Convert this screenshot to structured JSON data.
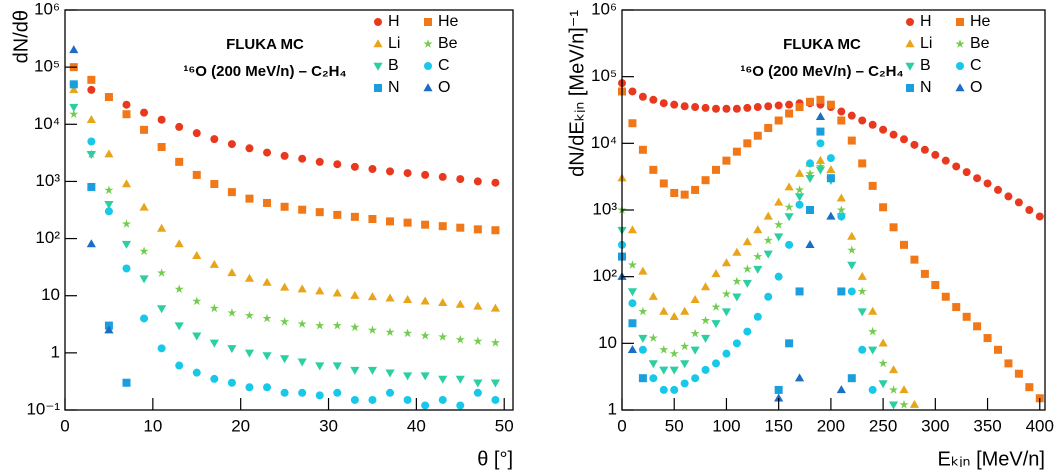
{
  "chart_data": [
    {
      "type": "scatter",
      "log_y": true,
      "legend": "upper right",
      "xlabel": "θ [°]",
      "ylabel": "dN/dθ",
      "annotations": [
        "FLUKA MC",
        "¹⁶O (200 MeV/n) – C₂H₄"
      ],
      "xlim": [
        0,
        51
      ],
      "xticks": [
        0,
        10,
        20,
        30,
        40,
        50
      ],
      "ylim": [
        0.1,
        1000000
      ],
      "yticks": [
        {
          "value": 0.1,
          "label": "10⁻¹"
        },
        1,
        10,
        {
          "value": 100,
          "label": "10²"
        },
        {
          "value": 1000,
          "label": "10³"
        },
        {
          "value": 10000,
          "label": "10⁴"
        },
        {
          "value": 100000,
          "label": "10⁵"
        },
        {
          "value": 1000000,
          "label": "10⁶"
        }
      ],
      "x": [
        1,
        3,
        5,
        7,
        9,
        11,
        13,
        15,
        17,
        19,
        21,
        23,
        25,
        27,
        29,
        31,
        33,
        35,
        37,
        39,
        41,
        43,
        45,
        47,
        49
      ],
      "series": [
        {
          "name": "H",
          "color": "#e8391e",
          "marker": "circle",
          "values": [
            50000,
            40000,
            30000,
            22000,
            16000,
            12000,
            9000,
            7000,
            5500,
            4500,
            3800,
            3200,
            2800,
            2500,
            2200,
            2000,
            1800,
            1650,
            1500,
            1400,
            1300,
            1200,
            1100,
            1000,
            950
          ]
        },
        {
          "name": "He",
          "color": "#f07818",
          "marker": "square",
          "values": [
            100000,
            60000,
            30000,
            15000,
            8000,
            4000,
            2200,
            1300,
            900,
            650,
            500,
            420,
            360,
            320,
            290,
            260,
            240,
            220,
            200,
            190,
            175,
            165,
            155,
            145,
            140
          ]
        },
        {
          "name": "Li",
          "color": "#e8a51a",
          "marker": "triangle-up",
          "values": [
            40000,
            12000,
            3000,
            900,
            350,
            150,
            80,
            50,
            35,
            25,
            20,
            17,
            14,
            13,
            12,
            11,
            10,
            9.5,
            9,
            8.5,
            8,
            7.5,
            7,
            6.5,
            6
          ]
        },
        {
          "name": "Be",
          "color": "#72cc4e",
          "marker": "star",
          "values": [
            15000,
            3000,
            700,
            180,
            60,
            25,
            13,
            8,
            6,
            5,
            4.5,
            4,
            3.5,
            3.2,
            3,
            3,
            2.8,
            2.5,
            2.3,
            2.2,
            2,
            1.9,
            1.7,
            1.6,
            1.5
          ]
        },
        {
          "name": "B",
          "color": "#2ccfa2",
          "marker": "triangle-down",
          "values": [
            20000,
            3000,
            400,
            80,
            20,
            6,
            3,
            2,
            1.5,
            1.2,
            1,
            0.9,
            0.8,
            0.7,
            0.6,
            0.6,
            0.5,
            0.5,
            0.45,
            0.4,
            0.4,
            0.35,
            0.35,
            0.3,
            0.3
          ]
        },
        {
          "name": "C",
          "color": "#18c8e8",
          "marker": "circle",
          "values": [
            50000,
            5000,
            300,
            30,
            4,
            1.2,
            0.6,
            0.45,
            0.35,
            0.3,
            0.25,
            0.25,
            0.2,
            0.2,
            0.18,
            0.2,
            0.15,
            0.15,
            0.2,
            0.15,
            0.12,
            0.15,
            0.12,
            0.2,
            0.15
          ]
        },
        {
          "name": "N",
          "color": "#1a9ede",
          "marker": "square",
          "values": [
            50000,
            800,
            3,
            0.3,
            null,
            null,
            null,
            null,
            null,
            null,
            null,
            null,
            null,
            null,
            null,
            null,
            null,
            null,
            null,
            null,
            null,
            null,
            null,
            null,
            null
          ]
        },
        {
          "name": "O",
          "color": "#1a6fc4",
          "marker": "triangle-up",
          "values": [
            200000,
            80,
            2.5,
            null,
            null,
            null,
            null,
            null,
            null,
            null,
            null,
            null,
            null,
            null,
            null,
            null,
            null,
            null,
            null,
            null,
            null,
            null,
            null,
            null,
            null
          ]
        }
      ]
    },
    {
      "type": "scatter",
      "log_y": true,
      "legend": "upper right",
      "xlabel": "Eₖᵢₙ [MeV/n]",
      "ylabel": "dN/dEₖᵢₙ [MeV/n]⁻¹",
      "annotations": [
        "FLUKA MC",
        "¹⁶O (200 MeV/n) – C₂H₄"
      ],
      "xlim": [
        0,
        405
      ],
      "xticks": [
        0,
        50,
        100,
        150,
        200,
        250,
        300,
        350,
        400
      ],
      "ylim": [
        1,
        1000000
      ],
      "yticks": [
        1,
        10,
        {
          "value": 100,
          "label": "10²"
        },
        {
          "value": 1000,
          "label": "10³"
        },
        {
          "value": 10000,
          "label": "10⁴"
        },
        {
          "value": 100000,
          "label": "10⁵"
        },
        {
          "value": 1000000,
          "label": "10⁶"
        }
      ],
      "x": [
        0,
        10,
        20,
        30,
        40,
        50,
        60,
        70,
        80,
        90,
        100,
        110,
        120,
        130,
        140,
        150,
        160,
        170,
        180,
        190,
        200,
        210,
        220,
        230,
        240,
        250,
        260,
        270,
        280,
        290,
        300,
        310,
        320,
        330,
        340,
        350,
        360,
        370,
        380,
        390,
        400
      ],
      "series": [
        {
          "name": "H",
          "color": "#e8391e",
          "marker": "circle",
          "values": [
            80000,
            60000,
            50000,
            45000,
            40000,
            38000,
            36000,
            35000,
            34000,
            33000,
            33000,
            33000,
            34000,
            35000,
            36000,
            37000,
            38000,
            40000,
            40000,
            38000,
            35000,
            30000,
            26000,
            22000,
            19000,
            16000,
            13500,
            11500,
            9500,
            8000,
            6700,
            5500,
            4500,
            3700,
            3000,
            2500,
            2000,
            1600,
            1300,
            1000,
            800
          ]
        },
        {
          "name": "He",
          "color": "#f07818",
          "marker": "square",
          "values": [
            60000,
            20000,
            8000,
            4000,
            2500,
            1800,
            1700,
            2000,
            2800,
            4000,
            5500,
            7500,
            10000,
            13000,
            17000,
            22000,
            28000,
            35000,
            42000,
            45000,
            38000,
            22000,
            11000,
            5000,
            2300,
            1100,
            550,
            300,
            180,
            110,
            75,
            50,
            35,
            25,
            18,
            12,
            8,
            5,
            3.5,
            2.2,
            1.5
          ]
        },
        {
          "name": "Li",
          "color": "#e8a51a",
          "marker": "triangle-up",
          "values": [
            3000,
            500,
            120,
            50,
            30,
            25,
            30,
            45,
            70,
            110,
            160,
            230,
            330,
            500,
            800,
            1300,
            2200,
            3500,
            5000,
            5500,
            4000,
            1500,
            400,
            100,
            30,
            10,
            4,
            2,
            1.2,
            null,
            null,
            null,
            null,
            null,
            null,
            null,
            null,
            null,
            null,
            null,
            null
          ]
        },
        {
          "name": "Be",
          "color": "#72cc4e",
          "marker": "star",
          "values": [
            1000,
            150,
            30,
            12,
            8,
            7,
            9,
            14,
            22,
            35,
            55,
            85,
            130,
            200,
            350,
            600,
            1100,
            2000,
            3500,
            4500,
            3000,
            1000,
            250,
            60,
            15,
            5,
            2,
            1.2,
            null,
            null,
            null,
            null,
            null,
            null,
            null,
            null,
            null,
            null,
            null,
            null,
            null
          ]
        },
        {
          "name": "B",
          "color": "#2ccfa2",
          "marker": "triangle-down",
          "values": [
            500,
            60,
            12,
            5,
            4,
            4,
            5,
            8,
            12,
            20,
            30,
            50,
            80,
            130,
            220,
            400,
            800,
            1600,
            3000,
            4000,
            2800,
            800,
            150,
            30,
            8,
            2.5,
            1.2,
            null,
            null,
            null,
            null,
            null,
            null,
            null,
            null,
            null,
            null,
            null,
            null,
            null,
            null
          ]
        },
        {
          "name": "C",
          "color": "#18c8e8",
          "marker": "circle",
          "values": [
            300,
            40,
            8,
            3,
            2,
            2,
            2.5,
            3,
            4,
            5,
            7,
            10,
            15,
            25,
            50,
            100,
            300,
            1200,
            5000,
            10000,
            6000,
            800,
            60,
            8,
            2,
            null,
            null,
            null,
            null,
            null,
            null,
            null,
            null,
            null,
            null,
            null,
            null,
            null,
            null,
            null,
            null
          ]
        },
        {
          "name": "N",
          "color": "#1a9ede",
          "marker": "square",
          "values": [
            200,
            20,
            3,
            null,
            null,
            null,
            null,
            null,
            null,
            null,
            null,
            null,
            null,
            null,
            null,
            2,
            10,
            60,
            1000,
            15000,
            3000,
            60,
            3,
            null,
            null,
            null,
            null,
            null,
            null,
            null,
            null,
            null,
            null,
            null,
            null,
            null,
            null,
            null,
            null,
            null,
            null
          ]
        },
        {
          "name": "O",
          "color": "#1a6fc4",
          "marker": "triangle-up",
          "values": [
            100,
            8,
            null,
            null,
            null,
            null,
            null,
            null,
            null,
            null,
            null,
            null,
            null,
            null,
            null,
            1.5,
            null,
            3,
            300,
            25000,
            800,
            2,
            null,
            null,
            null,
            null,
            null,
            null,
            null,
            null,
            null,
            null,
            null,
            null,
            null,
            null,
            null,
            null,
            null,
            null,
            null
          ]
        }
      ]
    }
  ]
}
